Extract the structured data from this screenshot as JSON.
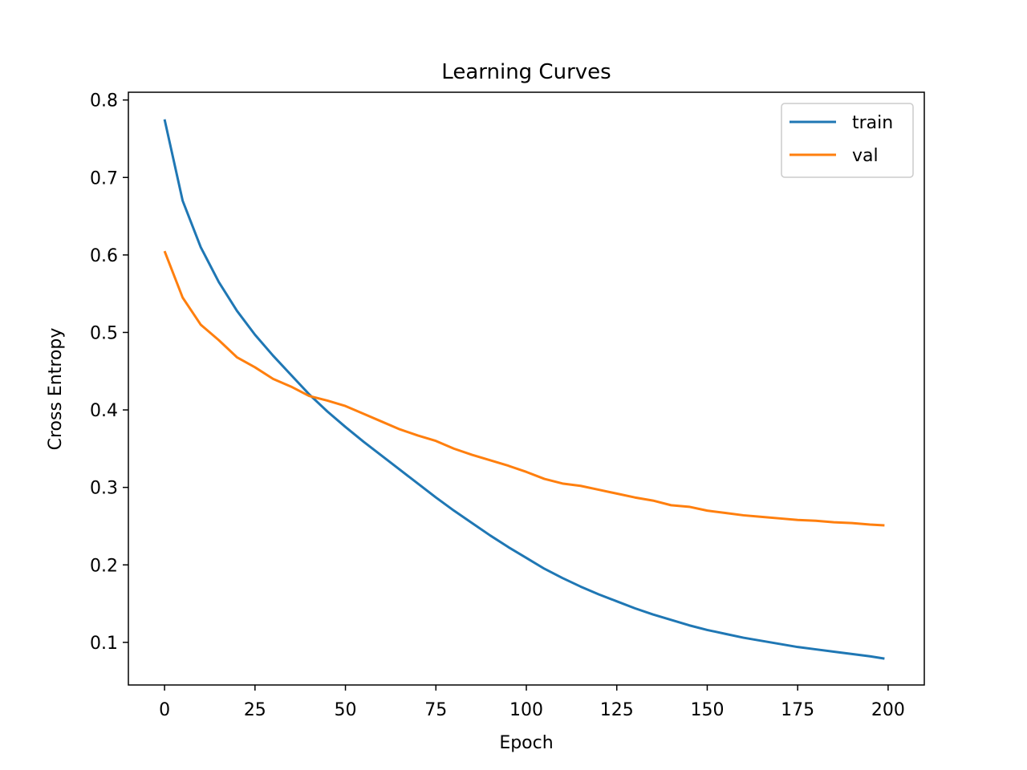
{
  "chart_data": {
    "type": "line",
    "title": "Learning Curves",
    "xlabel": "Epoch",
    "ylabel": "Cross Entropy",
    "xlim": [
      -10,
      210
    ],
    "ylim": [
      0.045,
      0.81
    ],
    "xticks": [
      0,
      25,
      50,
      75,
      100,
      125,
      150,
      175,
      200
    ],
    "yticks": [
      0.1,
      0.2,
      0.3,
      0.4,
      0.5,
      0.6,
      0.7,
      0.8
    ],
    "grid": false,
    "legend_position": "top-right",
    "x": [
      0,
      5,
      10,
      15,
      20,
      25,
      30,
      35,
      40,
      45,
      50,
      55,
      60,
      65,
      70,
      75,
      80,
      85,
      90,
      95,
      100,
      105,
      110,
      115,
      120,
      125,
      130,
      135,
      140,
      145,
      150,
      155,
      160,
      165,
      170,
      175,
      180,
      185,
      190,
      195,
      199
    ],
    "series": [
      {
        "name": "train",
        "color": "#1f77b4",
        "values": [
          0.775,
          0.67,
          0.61,
          0.565,
          0.528,
          0.497,
          0.47,
          0.445,
          0.42,
          0.398,
          0.378,
          0.359,
          0.341,
          0.323,
          0.305,
          0.287,
          0.27,
          0.254,
          0.238,
          0.223,
          0.209,
          0.195,
          0.183,
          0.172,
          0.162,
          0.153,
          0.144,
          0.136,
          0.129,
          0.122,
          0.116,
          0.111,
          0.106,
          0.102,
          0.098,
          0.094,
          0.091,
          0.088,
          0.085,
          0.082,
          0.079
        ]
      },
      {
        "name": "val",
        "color": "#ff7f0e",
        "values": [
          0.605,
          0.545,
          0.51,
          0.49,
          0.468,
          0.455,
          0.44,
          0.43,
          0.418,
          0.412,
          0.405,
          0.395,
          0.385,
          0.375,
          0.367,
          0.36,
          0.35,
          0.342,
          0.335,
          0.328,
          0.32,
          0.311,
          0.305,
          0.302,
          0.297,
          0.292,
          0.287,
          0.283,
          0.277,
          0.275,
          0.27,
          0.267,
          0.264,
          0.262,
          0.26,
          0.258,
          0.257,
          0.255,
          0.254,
          0.252,
          0.251
        ]
      }
    ]
  }
}
